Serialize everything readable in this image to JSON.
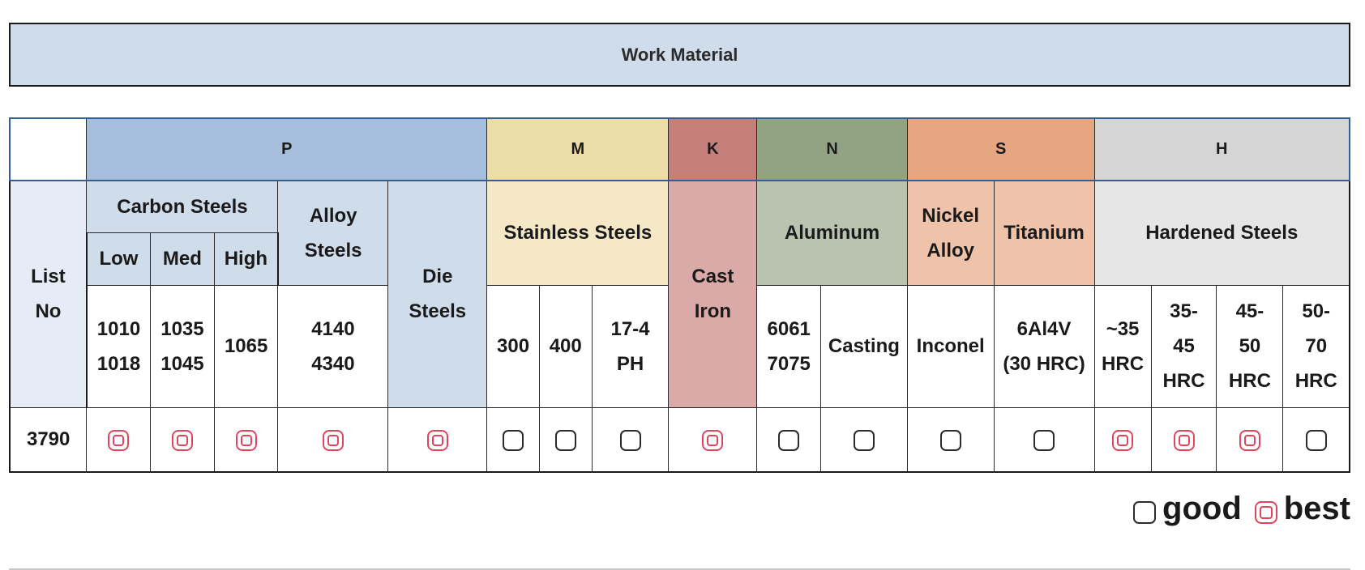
{
  "banner": {
    "title": "Work Material"
  },
  "iso_groups": {
    "p": "P",
    "m": "M",
    "k": "K",
    "n": "N",
    "s": "S",
    "h": "H"
  },
  "headers": {
    "list_no": "List No",
    "carbon_steels": "Carbon Steels",
    "low": "Low",
    "med": "Med",
    "high": "High",
    "alloy_steels": "Alloy Steels",
    "die_steels": "Die Steels",
    "stainless_steels": "Stainless Steels",
    "cast_iron": "Cast Iron",
    "aluminum": "Aluminum",
    "nickel_alloy": "Nickel Alloy",
    "titanium": "Titanium",
    "hardened_steels": "Hardened Steels"
  },
  "grades": {
    "low": [
      "1010",
      "1018"
    ],
    "med": [
      "1035",
      "1045"
    ],
    "high": "1065",
    "alloy": [
      "4140",
      "4340"
    ],
    "ss_300": "300",
    "ss_400": "400",
    "ss_174": [
      "17-4",
      "PH"
    ],
    "al_6061": [
      "6061",
      "7075"
    ],
    "al_casting": "Casting",
    "inconel": "Inconel",
    "ti": [
      "6Al4V",
      "(30 HRC)"
    ],
    "h_35": [
      "~35",
      "HRC"
    ],
    "h_3545": [
      "35-",
      "45",
      "HRC"
    ],
    "h_4550": [
      "45-",
      "50",
      "HRC"
    ],
    "h_5070": [
      "50-",
      "70",
      "HRC"
    ]
  },
  "product": {
    "list_no": "3790",
    "ratings": [
      "best",
      "best",
      "best",
      "best",
      "best",
      "good",
      "good",
      "good",
      "best",
      "good",
      "good",
      "good",
      "good",
      "best",
      "best",
      "best",
      "good"
    ]
  },
  "legend": {
    "good": "good",
    "best": "best"
  },
  "colors": {
    "p": "#a7bddc",
    "m": "#ecdca6",
    "k": "#c57f7b",
    "n": "#91a383",
    "s": "#e6a67f",
    "h": "#d5d5d5",
    "best_mark": "#e0455a",
    "good_mark": "#2b2b2b"
  }
}
